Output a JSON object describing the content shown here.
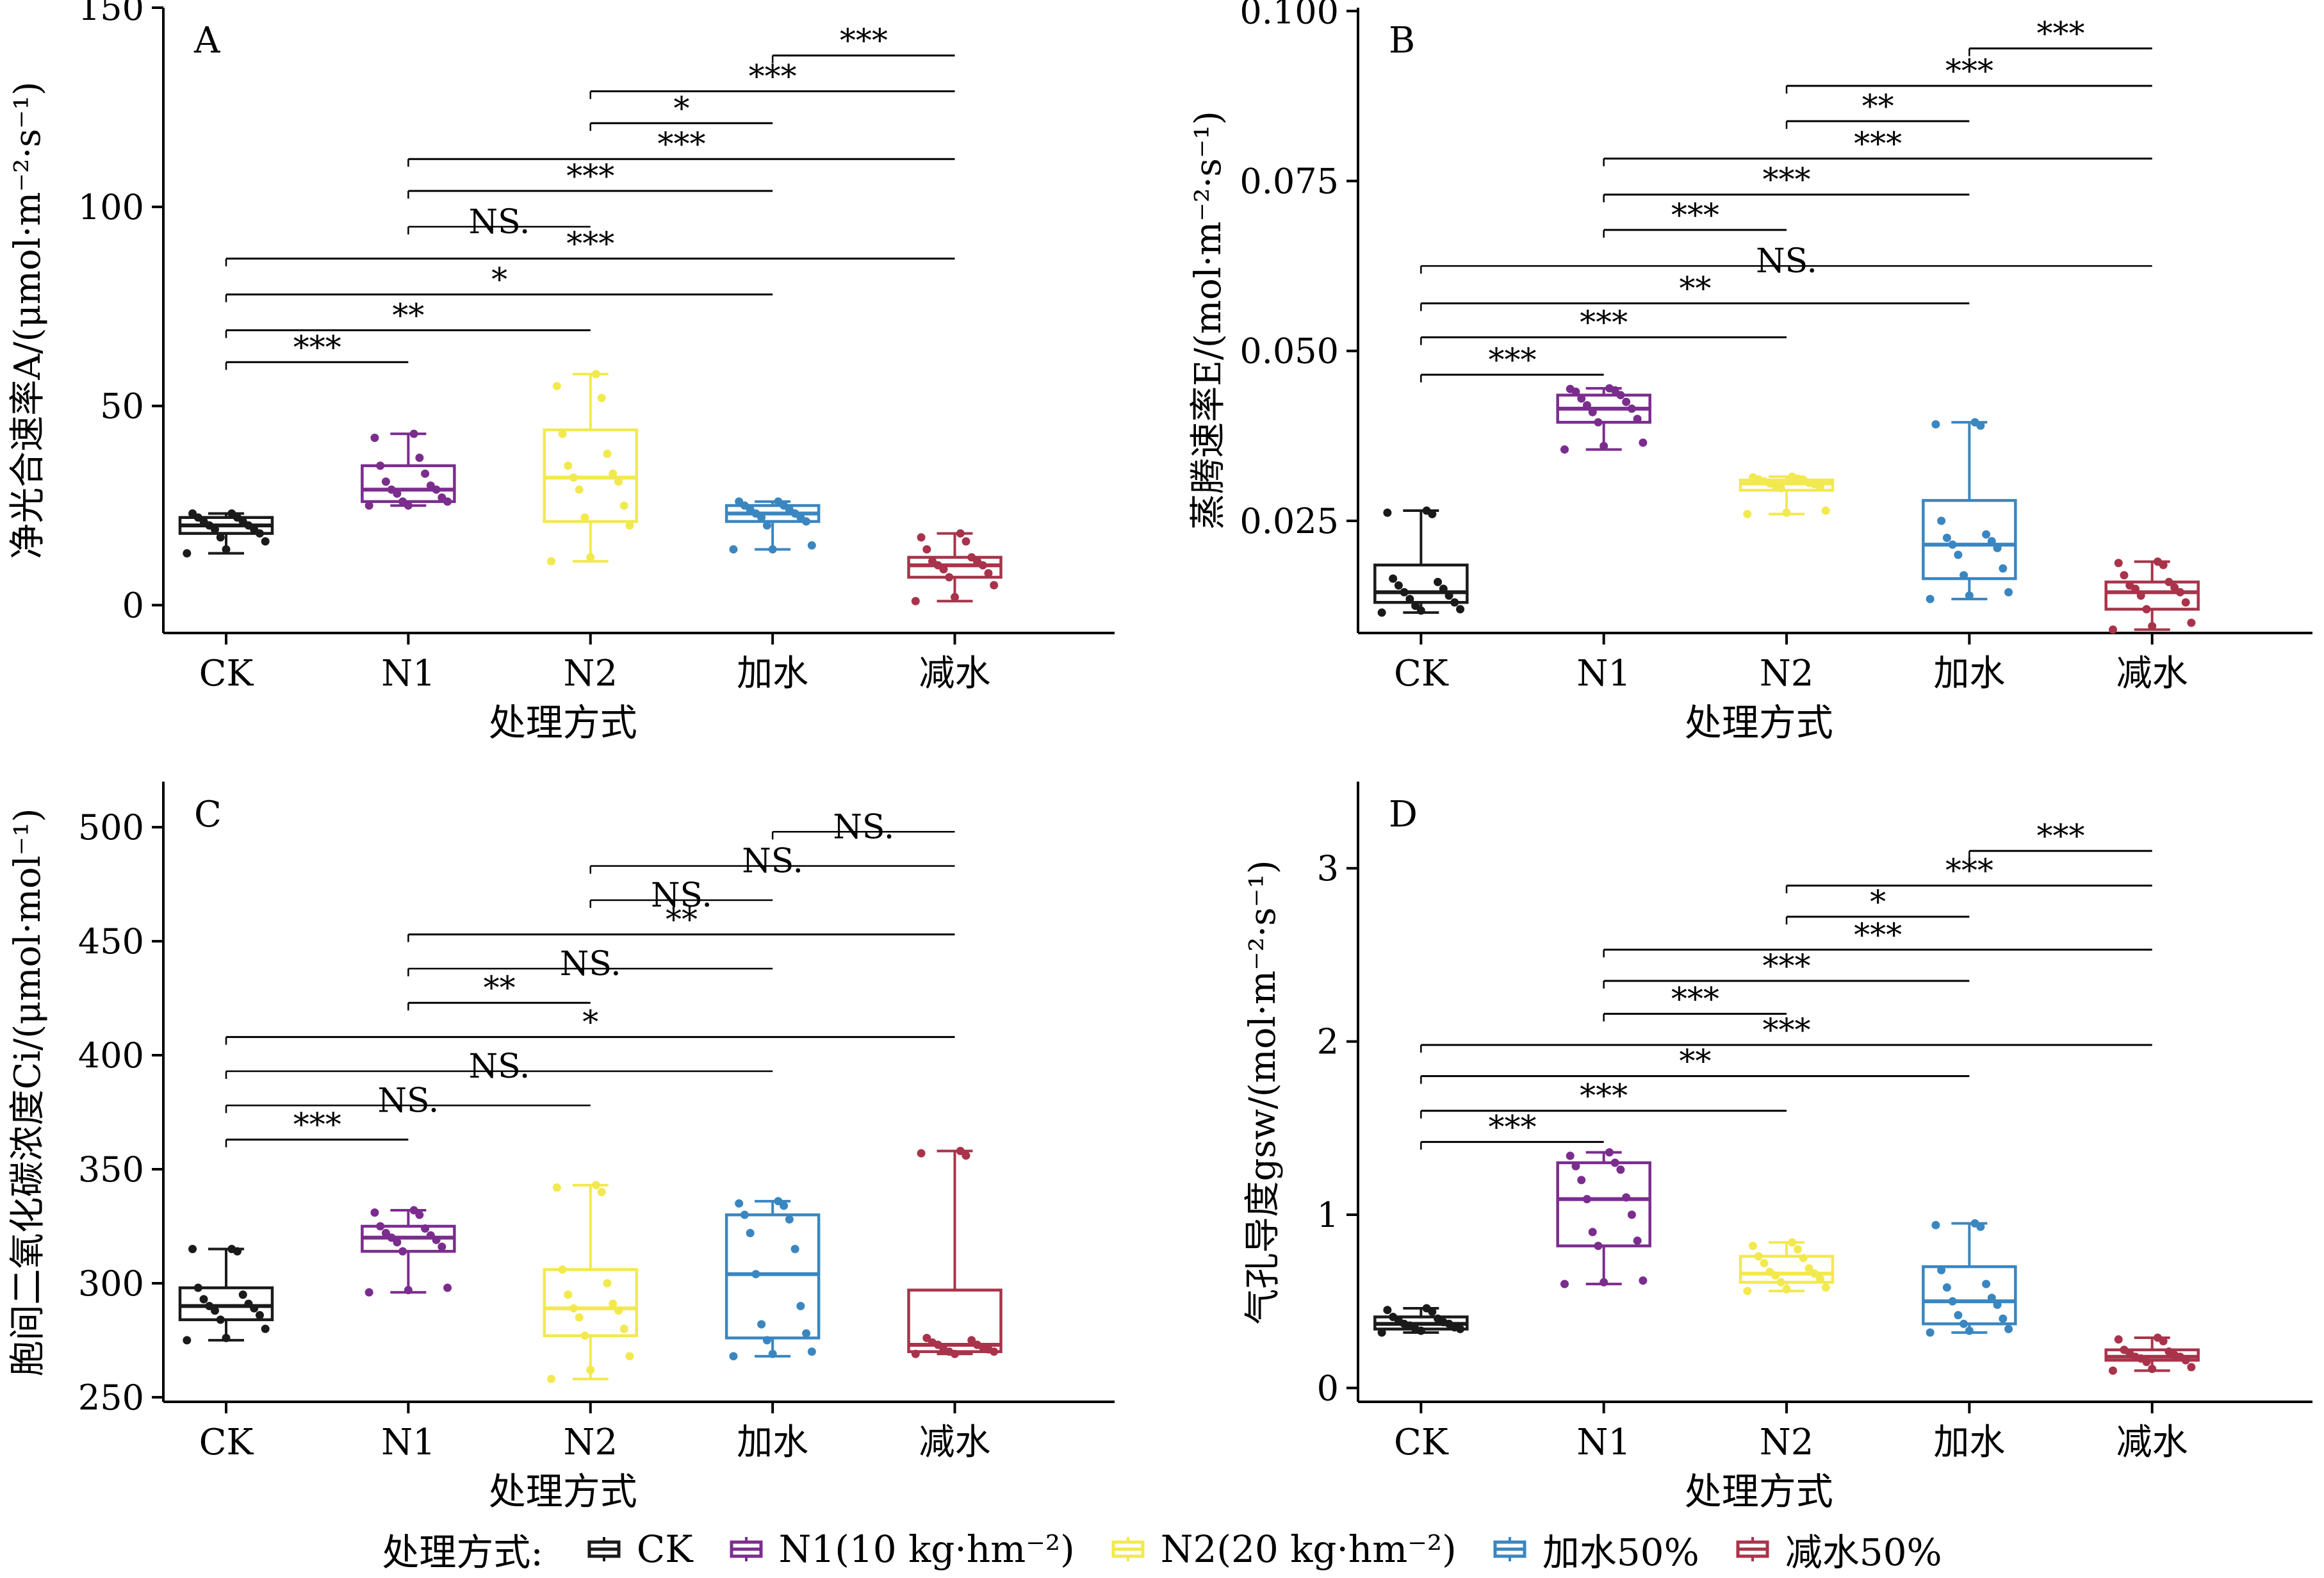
{
  "chart_data": [
    {
      "type": "box",
      "panel_label": "A",
      "ylabel": "净光合速率A/(μmol·m⁻²·s⁻¹)",
      "xlabel": "处理方式",
      "categories": [
        "CK",
        "N1",
        "N2",
        "加水",
        "减水"
      ],
      "ylim": [
        -7,
        150
      ],
      "yticks": [
        0,
        50,
        100,
        150
      ],
      "boxes": [
        {
          "min": 13,
          "q1": 18,
          "median": 20,
          "q3": 22,
          "max": 23
        },
        {
          "min": 25,
          "q1": 26,
          "median": 29,
          "q3": 35,
          "max": 43
        },
        {
          "min": 11,
          "q1": 21,
          "median": 32,
          "q3": 44,
          "max": 58
        },
        {
          "min": 14,
          "q1": 21,
          "median": 23,
          "q3": 25,
          "max": 26
        },
        {
          "min": 1,
          "q1": 7,
          "median": 10,
          "q3": 12,
          "max": 18
        }
      ],
      "points": [
        [
          13,
          14,
          16,
          17,
          18,
          19,
          19,
          20,
          20,
          21,
          21,
          22,
          22,
          23,
          23
        ],
        [
          25,
          25,
          26,
          26,
          27,
          28,
          29,
          29,
          30,
          31,
          33,
          35,
          37,
          42,
          43
        ],
        [
          11,
          12,
          20,
          22,
          25,
          29,
          31,
          32,
          33,
          35,
          38,
          43,
          52,
          55,
          58
        ],
        [
          14,
          14,
          15,
          20,
          21,
          22,
          22,
          23,
          23,
          24,
          24,
          25,
          25,
          26,
          26
        ],
        [
          1,
          2,
          5,
          7,
          8,
          9,
          10,
          10,
          11,
          11,
          12,
          14,
          16,
          17,
          18
        ]
      ],
      "comparisons": [
        {
          "from": 0,
          "to": 1,
          "y": 61,
          "label": "***"
        },
        {
          "from": 0,
          "to": 2,
          "y": 69,
          "label": "**"
        },
        {
          "from": 0,
          "to": 3,
          "y": 78,
          "label": "*"
        },
        {
          "from": 0,
          "to": 4,
          "y": 87,
          "label": "***"
        },
        {
          "from": 1,
          "to": 2,
          "y": 95,
          "label": "NS."
        },
        {
          "from": 1,
          "to": 3,
          "y": 104,
          "label": "***"
        },
        {
          "from": 1,
          "to": 4,
          "y": 112,
          "label": "***"
        },
        {
          "from": 2,
          "to": 3,
          "y": 121,
          "label": "*"
        },
        {
          "from": 2,
          "to": 4,
          "y": 129,
          "label": "***"
        },
        {
          "from": 3,
          "to": 4,
          "y": 138,
          "label": "***"
        }
      ]
    },
    {
      "type": "box",
      "panel_label": "B",
      "ylabel": "蒸腾速率E/(mol·m⁻²·s⁻¹)",
      "xlabel": "处理方式",
      "categories": [
        "CK",
        "N1",
        "N2",
        "加水",
        "减水"
      ],
      "ylim": [
        0.0085,
        0.1005
      ],
      "yticks": [
        0.025,
        0.05,
        0.075,
        0.1
      ],
      "ytick_labels": [
        "0.025",
        "0.050",
        "0.075",
        "0.100"
      ],
      "boxes": [
        {
          "min": 0.0115,
          "q1": 0.013,
          "median": 0.0145,
          "q3": 0.0185,
          "max": 0.0265
        },
        {
          "min": 0.0355,
          "q1": 0.0395,
          "median": 0.0415,
          "q3": 0.0435,
          "max": 0.0445
        },
        {
          "min": 0.026,
          "q1": 0.0295,
          "median": 0.0305,
          "q3": 0.031,
          "max": 0.0315
        },
        {
          "min": 0.0135,
          "q1": 0.0165,
          "median": 0.0215,
          "q3": 0.028,
          "max": 0.0395
        },
        {
          "min": 0.009,
          "q1": 0.012,
          "median": 0.0145,
          "q3": 0.016,
          "max": 0.019
        }
      ],
      "points": [
        [
          0.0115,
          0.0118,
          0.012,
          0.0125,
          0.013,
          0.0135,
          0.014,
          0.0145,
          0.015,
          0.0155,
          0.016,
          0.0165,
          0.026,
          0.0262,
          0.0265
        ],
        [
          0.0355,
          0.036,
          0.0365,
          0.0395,
          0.04,
          0.041,
          0.0415,
          0.042,
          0.0425,
          0.043,
          0.0435,
          0.044,
          0.0442,
          0.0444,
          0.0445
        ],
        [
          0.026,
          0.0262,
          0.0265,
          0.0298,
          0.03,
          0.0302,
          0.0304,
          0.0305,
          0.0306,
          0.0308,
          0.031,
          0.0311,
          0.0312,
          0.0314,
          0.0315
        ],
        [
          0.0135,
          0.014,
          0.0145,
          0.017,
          0.018,
          0.02,
          0.021,
          0.0215,
          0.022,
          0.0225,
          0.023,
          0.025,
          0.039,
          0.0392,
          0.0395
        ],
        [
          0.009,
          0.0095,
          0.01,
          0.012,
          0.013,
          0.014,
          0.0145,
          0.015,
          0.0152,
          0.0155,
          0.016,
          0.017,
          0.0185,
          0.0188,
          0.019
        ]
      ],
      "comparisons": [
        {
          "from": 0,
          "to": 1,
          "y": 0.0465,
          "label": "***"
        },
        {
          "from": 0,
          "to": 2,
          "y": 0.052,
          "label": "***"
        },
        {
          "from": 0,
          "to": 3,
          "y": 0.057,
          "label": "**"
        },
        {
          "from": 0,
          "to": 4,
          "y": 0.0625,
          "label": "NS."
        },
        {
          "from": 1,
          "to": 2,
          "y": 0.0678,
          "label": "***"
        },
        {
          "from": 1,
          "to": 3,
          "y": 0.073,
          "label": "***"
        },
        {
          "from": 1,
          "to": 4,
          "y": 0.0783,
          "label": "***"
        },
        {
          "from": 2,
          "to": 3,
          "y": 0.0838,
          "label": "**"
        },
        {
          "from": 2,
          "to": 4,
          "y": 0.089,
          "label": "***"
        },
        {
          "from": 3,
          "to": 4,
          "y": 0.0945,
          "label": "***"
        }
      ]
    },
    {
      "type": "box",
      "panel_label": "C",
      "ylabel": "胞间二氧化碳浓度Ci/(μmol·mol⁻¹)",
      "xlabel": "处理方式",
      "categories": [
        "CK",
        "N1",
        "N2",
        "加水",
        "减水"
      ],
      "ylim": [
        248,
        520
      ],
      "yticks": [
        250,
        300,
        350,
        400,
        450,
        500
      ],
      "boxes": [
        {
          "min": 275,
          "q1": 284,
          "median": 290,
          "q3": 298,
          "max": 315
        },
        {
          "min": 296,
          "q1": 314,
          "median": 320,
          "q3": 325,
          "max": 332
        },
        {
          "min": 258,
          "q1": 277,
          "median": 289,
          "q3": 306,
          "max": 343
        },
        {
          "min": 268,
          "q1": 276,
          "median": 304,
          "q3": 330,
          "max": 336
        },
        {
          "min": 269,
          "q1": 270,
          "median": 273,
          "q3": 297,
          "max": 358
        }
      ],
      "points": [
        [
          275,
          276,
          280,
          284,
          286,
          288,
          289,
          290,
          291,
          293,
          295,
          298,
          314,
          315,
          315
        ],
        [
          296,
          297,
          298,
          314,
          316,
          318,
          319,
          320,
          321,
          322,
          324,
          325,
          330,
          331,
          332
        ],
        [
          258,
          262,
          268,
          277,
          280,
          285,
          288,
          289,
          291,
          295,
          300,
          306,
          340,
          342,
          343
        ],
        [
          268,
          269,
          270,
          275,
          278,
          282,
          290,
          304,
          315,
          322,
          328,
          330,
          334,
          335,
          336
        ],
        [
          269,
          269,
          270,
          270,
          271,
          271,
          272,
          273,
          273,
          274,
          275,
          276,
          356,
          357,
          358
        ]
      ],
      "comparisons": [
        {
          "from": 0,
          "to": 1,
          "y": 363,
          "label": "***"
        },
        {
          "from": 0,
          "to": 2,
          "y": 378,
          "label": "NS."
        },
        {
          "from": 0,
          "to": 3,
          "y": 393,
          "label": "NS."
        },
        {
          "from": 0,
          "to": 4,
          "y": 408,
          "label": "*"
        },
        {
          "from": 1,
          "to": 2,
          "y": 423,
          "label": "**"
        },
        {
          "from": 1,
          "to": 3,
          "y": 438,
          "label": "NS."
        },
        {
          "from": 1,
          "to": 4,
          "y": 453,
          "label": "**"
        },
        {
          "from": 2,
          "to": 3,
          "y": 468,
          "label": "NS."
        },
        {
          "from": 2,
          "to": 4,
          "y": 483,
          "label": "NS."
        },
        {
          "from": 3,
          "to": 4,
          "y": 498,
          "label": "NS."
        }
      ]
    },
    {
      "type": "box",
      "panel_label": "D",
      "ylabel": "气孔导度gsw/(mol·m⁻²·s⁻¹)",
      "xlabel": "处理方式",
      "categories": [
        "CK",
        "N1",
        "N2",
        "加水",
        "减水"
      ],
      "ylim": [
        -0.08,
        3.5
      ],
      "yticks": [
        0,
        1,
        2,
        3
      ],
      "boxes": [
        {
          "min": 0.32,
          "q1": 0.34,
          "median": 0.37,
          "q3": 0.41,
          "max": 0.46
        },
        {
          "min": 0.6,
          "q1": 0.82,
          "median": 1.09,
          "q3": 1.3,
          "max": 1.36
        },
        {
          "min": 0.56,
          "q1": 0.61,
          "median": 0.66,
          "q3": 0.76,
          "max": 0.84
        },
        {
          "min": 0.32,
          "q1": 0.37,
          "median": 0.5,
          "q3": 0.7,
          "max": 0.95
        },
        {
          "min": 0.1,
          "q1": 0.16,
          "median": 0.18,
          "q3": 0.22,
          "max": 0.29
        }
      ],
      "points": [
        [
          0.32,
          0.33,
          0.34,
          0.34,
          0.35,
          0.36,
          0.37,
          0.37,
          0.38,
          0.39,
          0.4,
          0.41,
          0.44,
          0.45,
          0.46
        ],
        [
          0.6,
          0.61,
          0.62,
          0.82,
          0.85,
          0.9,
          1.0,
          1.09,
          1.1,
          1.2,
          1.26,
          1.28,
          1.3,
          1.34,
          1.36
        ],
        [
          0.56,
          0.57,
          0.58,
          0.61,
          0.63,
          0.65,
          0.66,
          0.67,
          0.69,
          0.72,
          0.75,
          0.76,
          0.8,
          0.82,
          0.84
        ],
        [
          0.32,
          0.33,
          0.34,
          0.37,
          0.4,
          0.42,
          0.48,
          0.5,
          0.52,
          0.58,
          0.6,
          0.68,
          0.93,
          0.94,
          0.95
        ],
        [
          0.1,
          0.11,
          0.12,
          0.15,
          0.16,
          0.17,
          0.18,
          0.18,
          0.19,
          0.2,
          0.21,
          0.22,
          0.27,
          0.28,
          0.29
        ]
      ],
      "comparisons": [
        {
          "from": 0,
          "to": 1,
          "y": 1.42,
          "label": "***"
        },
        {
          "from": 0,
          "to": 2,
          "y": 1.6,
          "label": "***"
        },
        {
          "from": 0,
          "to": 3,
          "y": 1.8,
          "label": "**"
        },
        {
          "from": 0,
          "to": 4,
          "y": 1.98,
          "label": "***"
        },
        {
          "from": 1,
          "to": 2,
          "y": 2.16,
          "label": "***"
        },
        {
          "from": 1,
          "to": 3,
          "y": 2.35,
          "label": "***"
        },
        {
          "from": 1,
          "to": 4,
          "y": 2.53,
          "label": "***"
        },
        {
          "from": 2,
          "to": 3,
          "y": 2.72,
          "label": "*"
        },
        {
          "from": 2,
          "to": 4,
          "y": 2.9,
          "label": "***"
        },
        {
          "from": 3,
          "to": 4,
          "y": 3.1,
          "label": "***"
        }
      ]
    }
  ],
  "series_colors": [
    "#1a1a1a",
    "#7b2d8e",
    "#f2e94e",
    "#3a86c0",
    "#a8334a"
  ],
  "legend": {
    "title": "处理方式:",
    "items": [
      "CK",
      "N1(10 kg·hm⁻²)",
      "N2(20 kg·hm⁻²)",
      "加水50%",
      "减水50%"
    ]
  }
}
